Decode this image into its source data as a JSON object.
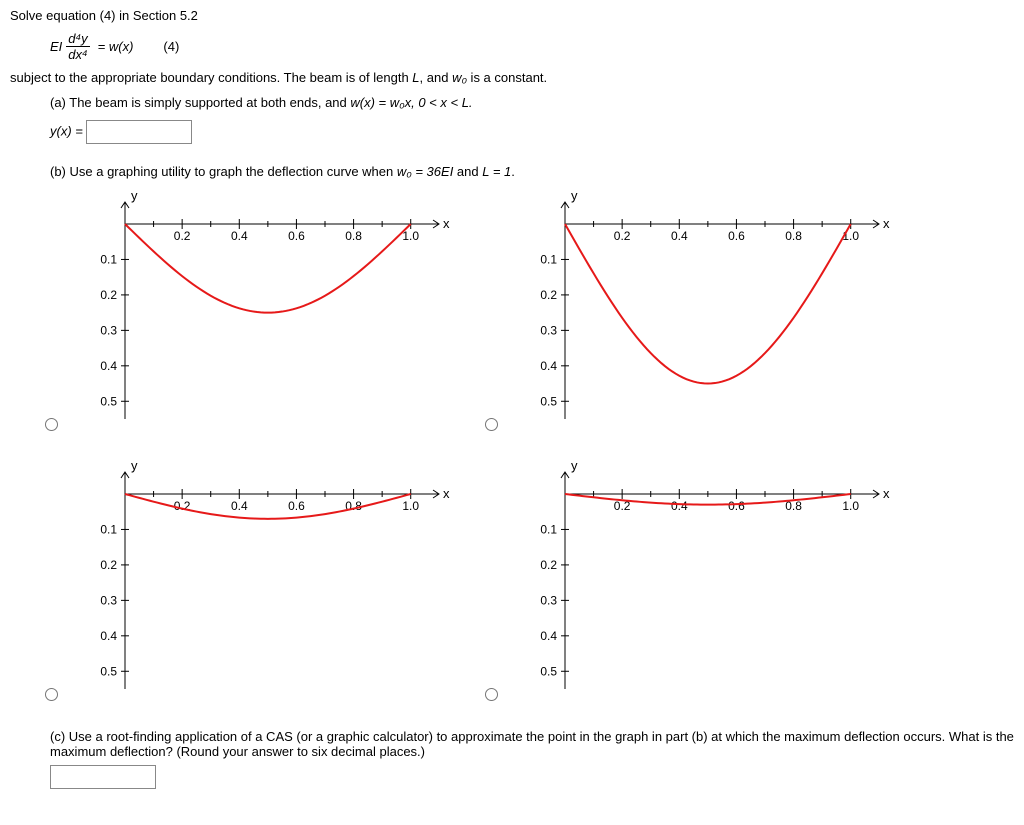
{
  "heading": "Solve equation (4) in Section 5.2",
  "equation": {
    "prefix": "EI",
    "numerator": "d⁴y",
    "denominator": "dx⁴",
    "equals": "= w(x)",
    "label": "(4)"
  },
  "line2": {
    "before": "subject to the appropriate boundary conditions. The beam is of length ",
    "Lvar": "L",
    "mid": ", and ",
    "w0": "w₀",
    "after": " is a constant."
  },
  "partA": {
    "label": "(a) The beam is simply supported at both ends, and ",
    "eqn": "w(x) = w₀x, 0 < x < L.",
    "prompt": "y(x) = "
  },
  "partB": {
    "label_before": "(b) Use a graphing utility to graph the deflection curve when ",
    "cond1": "w₀ = 36EI",
    "mid": " and ",
    "cond2": "L = 1",
    "after": "."
  },
  "partC": {
    "text": "(c) Use a root-finding application of a CAS (or a graphic calculator) to approximate the point in the graph in part (b) at which the maximum deflection occurs. What is the maximum deflection? (Round your answer to six decimal places.)"
  },
  "chart_common": {
    "xlabel": "x",
    "ylabel": "y",
    "xticks": [
      0.2,
      0.4,
      0.6,
      0.8,
      1.0
    ],
    "xticklabels": [
      "0.2",
      "0.4",
      "0.6",
      "0.8",
      "1.0"
    ],
    "yticks": [
      0.1,
      0.2,
      0.3,
      0.4,
      0.5
    ],
    "yticklabels": [
      "0.1",
      "0.2",
      "0.3",
      "0.4",
      "0.5"
    ],
    "xlim": [
      0,
      1.05
    ],
    "ylim": [
      0,
      0.55
    ],
    "bg": "#ffffff",
    "axis_color": "#000000",
    "curve_color": "#e61919",
    "curve_width": 2,
    "tick_fontsize": 12,
    "label_fontsize": 13
  },
  "charts": [
    {
      "id": "chart-top-left",
      "amplitude": 0.25,
      "skew": 0.5,
      "xticklabels": [
        "0.2",
        "0.4",
        "0.6",
        "0.8",
        "1.0"
      ]
    },
    {
      "id": "chart-top-right",
      "amplitude": 0.45,
      "skew": 0.5,
      "xticklabels": [
        "0.2",
        "0.4",
        "0.6",
        "0.8",
        "1.0"
      ]
    },
    {
      "id": "chart-bottom-left",
      "amplitude": 0.07,
      "skew": 0.5,
      "xticklabels": [
        "0.2",
        "0.4",
        "0.6",
        "0.8",
        "1.0"
      ]
    },
    {
      "id": "chart-bottom-right",
      "amplitude": 0.03,
      "skew": 0.5,
      "xticklabels": [
        "0.2",
        "0.4",
        "0.6",
        "0.8",
        "1.0"
      ]
    }
  ]
}
